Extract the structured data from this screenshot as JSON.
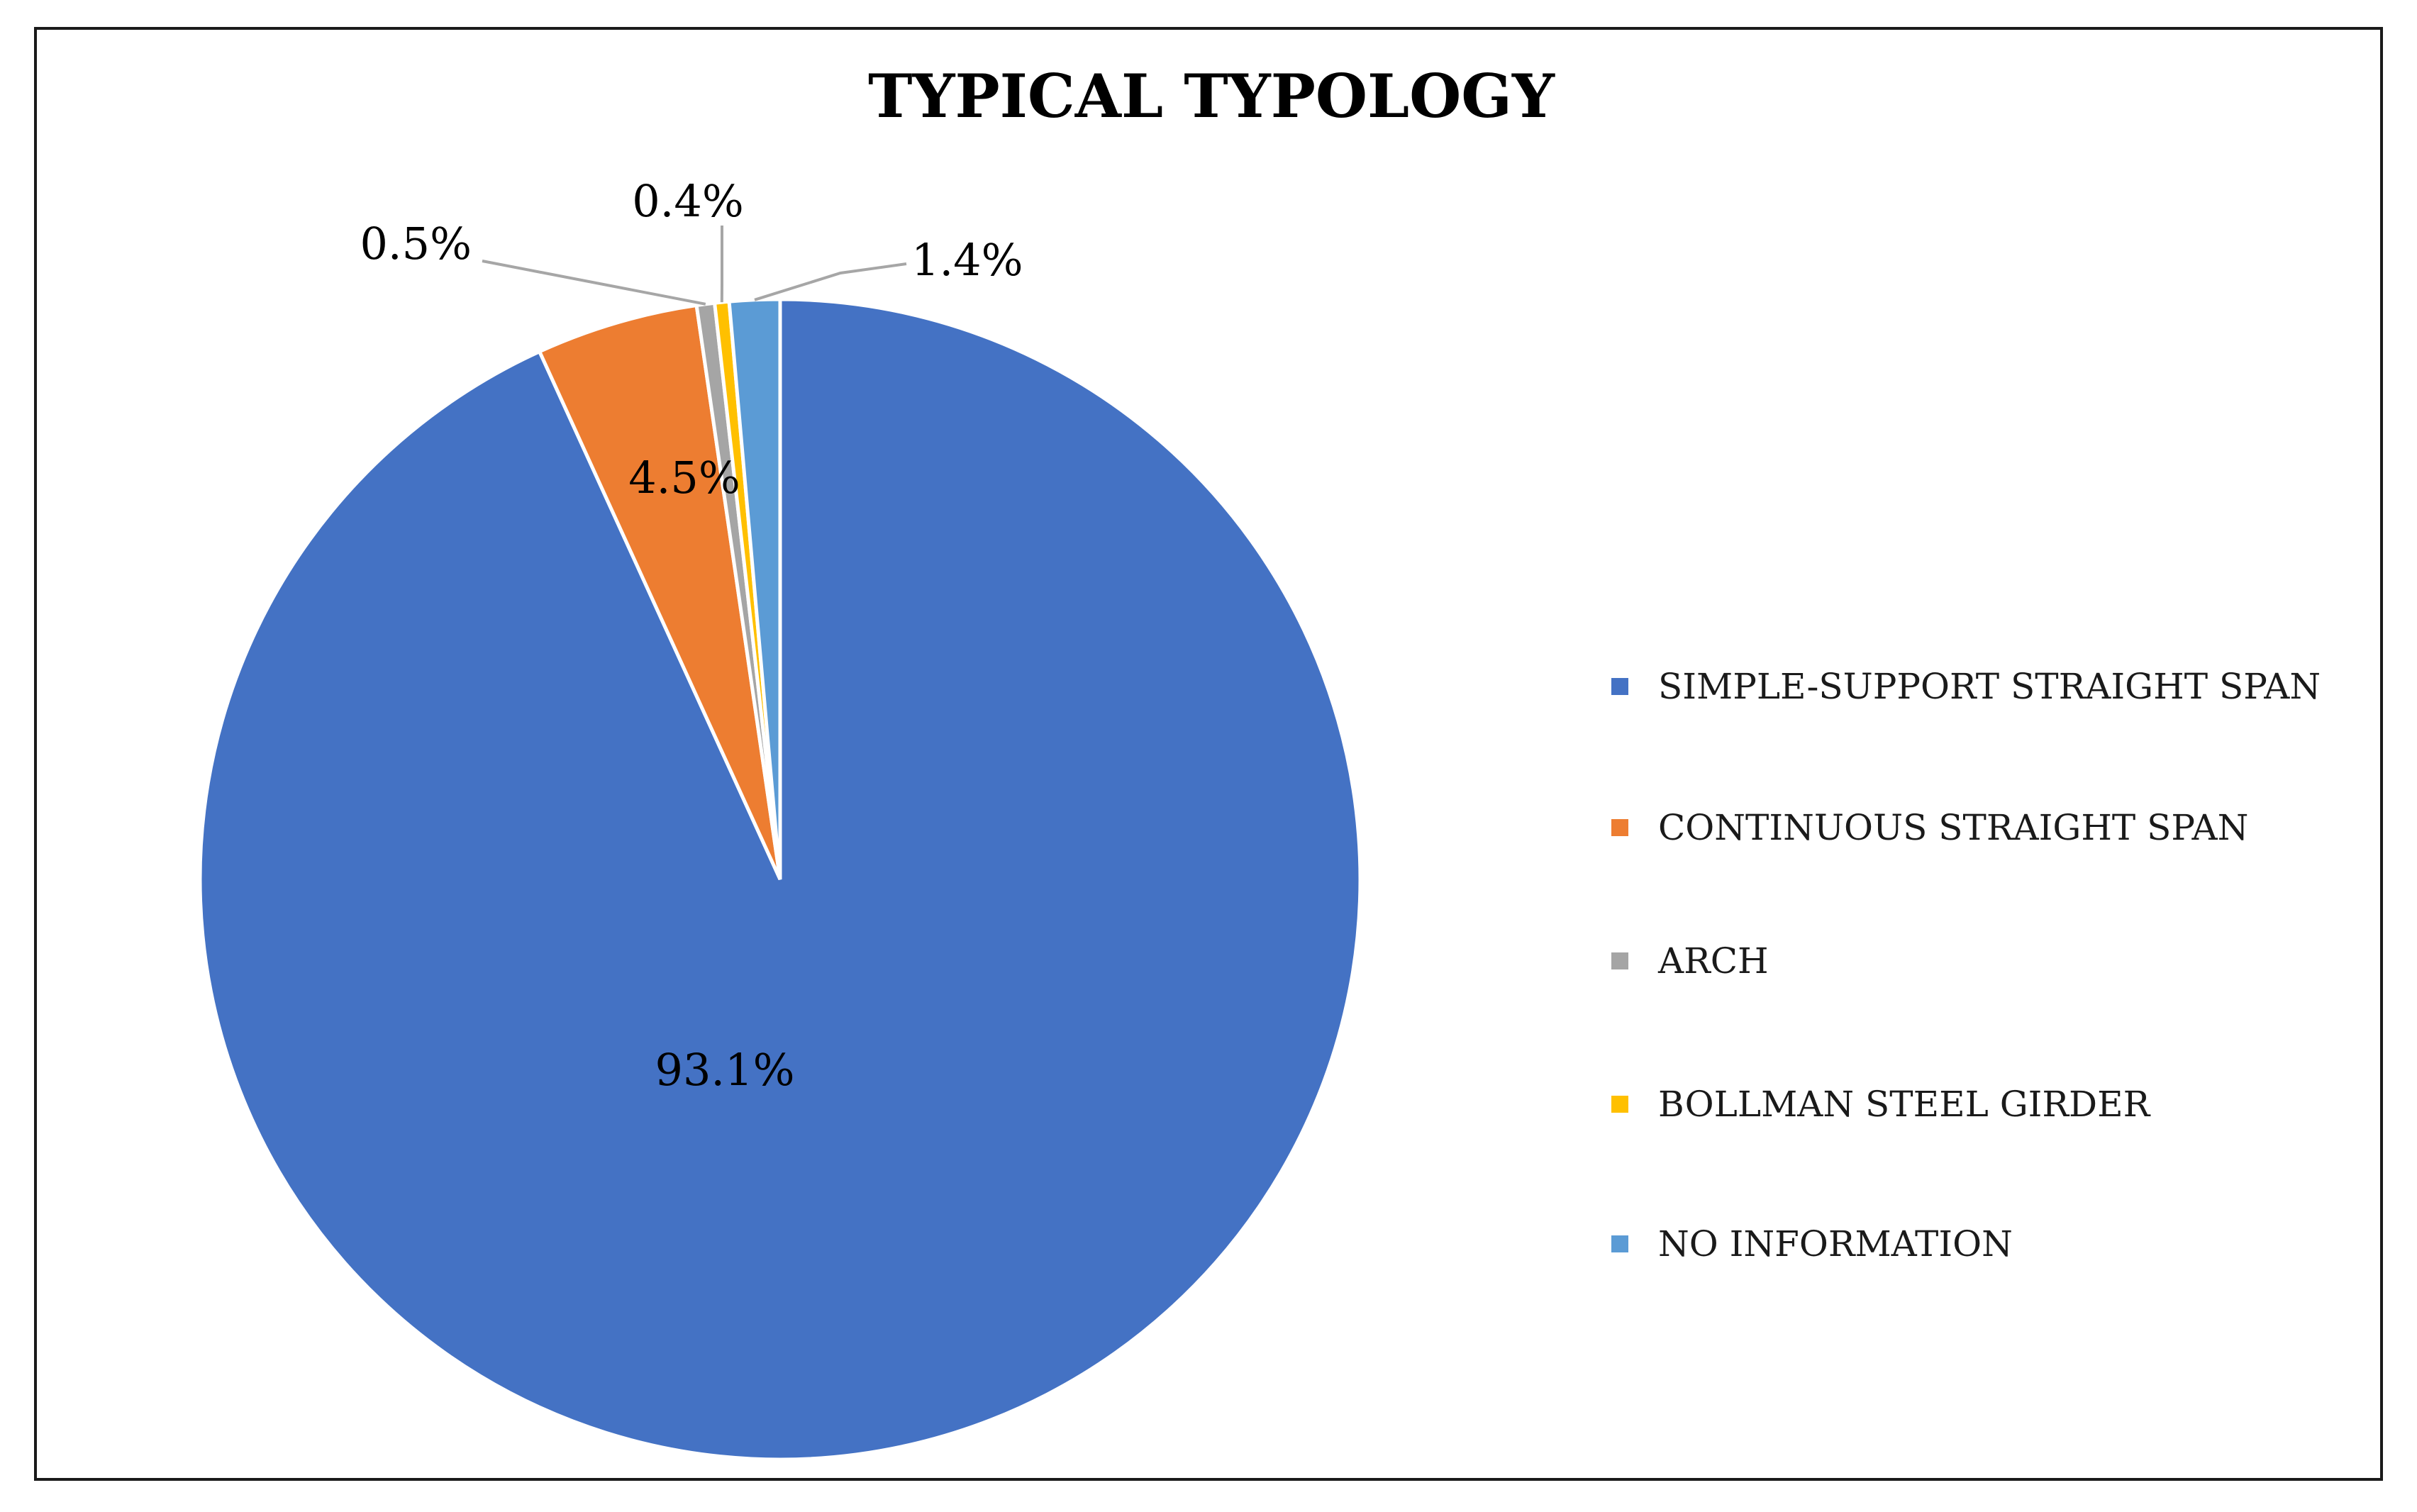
{
  "chart_data": {
    "type": "pie",
    "title": "TYPICAL TYPOLOGY",
    "categories": [
      "SIMPLE-SUPPORT STRAIGHT SPAN",
      "CONTINUOUS STRAIGHT SPAN",
      "ARCH",
      "BOLLMAN STEEL GIRDER",
      "NO INFORMATION"
    ],
    "values": [
      93.1,
      4.5,
      0.5,
      0.4,
      1.4
    ],
    "data_labels": [
      "93.1%",
      "4.5%",
      "0.5%",
      "0.4%",
      "1.4%"
    ],
    "colors": [
      "#4472C4",
      "#ED7D31",
      "#A5A5A5",
      "#FFC000",
      "#5B9BD5"
    ],
    "legend_position": "right",
    "start_angle": "12 o'clock, clockwise order: NO INFORMATION first going counter-clockwise"
  }
}
